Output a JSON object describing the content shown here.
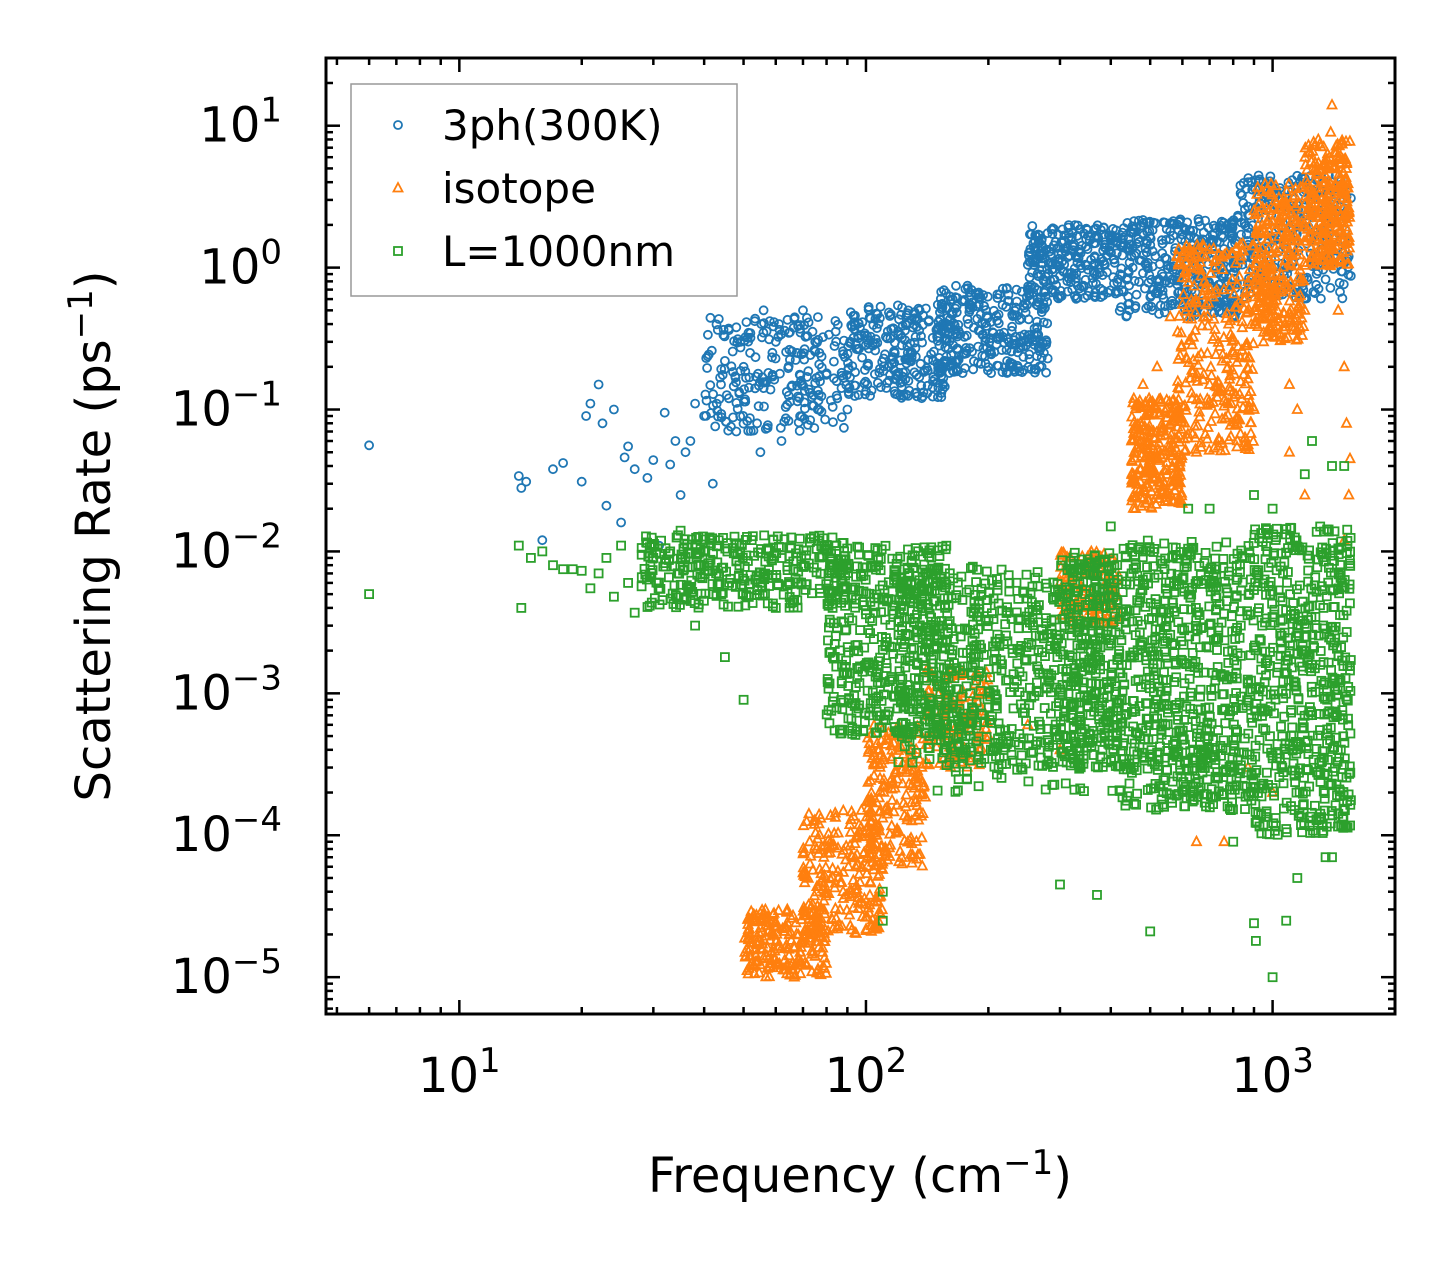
{
  "chart_data": {
    "type": "scatter",
    "xscale": "log",
    "yscale": "log",
    "xlim": [
      4.7,
      2000
    ],
    "ylim": [
      5.5e-06,
      30
    ],
    "xlabel": {
      "text": "Frequency (cm",
      "sup": "−1",
      "tail": ")"
    },
    "ylabel": {
      "text": "Scattering Rate (ps",
      "sup": "−1",
      "tail": ")"
    },
    "xticks": [
      {
        "value": 10,
        "base": "10",
        "exp": "1"
      },
      {
        "value": 100,
        "base": "10",
        "exp": "2"
      },
      {
        "value": 1000,
        "base": "10",
        "exp": "3"
      }
    ],
    "yticks": [
      {
        "value": 1e-05,
        "base": "10",
        "exp": "−5"
      },
      {
        "value": 0.0001,
        "base": "10",
        "exp": "−4"
      },
      {
        "value": 0.001,
        "base": "10",
        "exp": "−3"
      },
      {
        "value": 0.01,
        "base": "10",
        "exp": "−2"
      },
      {
        "value": 0.1,
        "base": "10",
        "exp": "−1"
      },
      {
        "value": 1,
        "base": "10",
        "exp": "0"
      },
      {
        "value": 10,
        "base": "10",
        "exp": "1"
      }
    ],
    "legend_position": "top-left",
    "series": [
      {
        "name": "3ph(300K)",
        "marker": "circle",
        "color": "#1f77b4",
        "points": [
          [
            6,
            0.056
          ],
          [
            14,
            0.034
          ],
          [
            14.2,
            0.028
          ],
          [
            14.6,
            0.031
          ],
          [
            16,
            0.012
          ],
          [
            17,
            0.038
          ],
          [
            18,
            0.042
          ],
          [
            20,
            0.031
          ],
          [
            20.5,
            0.09
          ],
          [
            21,
            0.11
          ],
          [
            22,
            0.15
          ],
          [
            22.5,
            0.08
          ],
          [
            23,
            0.021
          ],
          [
            24,
            0.1
          ],
          [
            25,
            0.016
          ],
          [
            25.5,
            0.046
          ],
          [
            26,
            0.055
          ],
          [
            27,
            0.038
          ],
          [
            29,
            0.033
          ],
          [
            30,
            0.044
          ],
          [
            31,
            0.011
          ],
          [
            32,
            0.095
          ],
          [
            33,
            0.041
          ],
          [
            34,
            0.06
          ],
          [
            35,
            0.025
          ],
          [
            36,
            0.05
          ],
          [
            37,
            0.06
          ],
          [
            38,
            0.11
          ],
          [
            40,
            0.09
          ],
          [
            42,
            0.03
          ],
          [
            44,
            0.15
          ],
          [
            45,
            0.22
          ],
          [
            46,
            0.12
          ],
          [
            48,
            0.07
          ],
          [
            50,
            0.2
          ],
          [
            52,
            0.32
          ],
          [
            54,
            0.08
          ],
          [
            55,
            0.05
          ],
          [
            56,
            0.5
          ],
          [
            58,
            0.42
          ],
          [
            60,
            0.3
          ],
          [
            62,
            0.06
          ],
          [
            65,
            0.35
          ],
          [
            68,
            0.25
          ],
          [
            70,
            0.5
          ],
          [
            75,
            0.3
          ],
          [
            80,
            0.18
          ],
          [
            85,
            0.12
          ],
          [
            90,
            0.1
          ]
        ],
        "bands": [
          {
            "x0": 40,
            "x1": 90,
            "ylo": 0.07,
            "yhi": 0.45,
            "n": 240
          },
          {
            "x0": 90,
            "x1": 160,
            "ylo": 0.12,
            "yhi": 0.55,
            "n": 260
          },
          {
            "x0": 150,
            "x1": 280,
            "ylo": 0.18,
            "yhi": 0.75,
            "n": 300
          },
          {
            "x0": 250,
            "x1": 420,
            "ylo": 0.6,
            "yhi": 2.0,
            "n": 260
          },
          {
            "x0": 420,
            "x1": 820,
            "ylo": 0.45,
            "yhi": 2.2,
            "n": 360
          },
          {
            "x0": 820,
            "x1": 1560,
            "ylo": 0.6,
            "yhi": 4.5,
            "n": 300
          }
        ]
      },
      {
        "name": "isotope",
        "marker": "triangle",
        "color": "#ff7f0e",
        "points": [
          [
            1400,
            14
          ],
          [
            1390,
            9
          ],
          [
            1380,
            6
          ],
          [
            1350,
            4
          ],
          [
            1300,
            2.5
          ],
          [
            1250,
            1.2
          ],
          [
            1200,
            0.5
          ],
          [
            1150,
            0.1
          ],
          [
            1100,
            0.05
          ],
          [
            1450,
            0.5
          ],
          [
            1500,
            0.2
          ],
          [
            1520,
            0.08
          ],
          [
            1550,
            0.045
          ],
          [
            1540,
            0.025
          ],
          [
            1500,
            0.012
          ],
          [
            1200,
            0.025
          ],
          [
            1100,
            0.15
          ],
          [
            1000,
            0.8
          ],
          [
            950,
            0.3
          ],
          [
            900,
            0.1
          ],
          [
            850,
            0.6
          ],
          [
            800,
            0.25
          ],
          [
            780,
            0.4
          ],
          [
            700,
            0.15
          ],
          [
            650,
            0.05
          ],
          [
            560,
            0.45
          ],
          [
            520,
            0.2
          ],
          [
            480,
            0.15
          ],
          [
            450,
            0.06
          ],
          [
            650,
            9e-05
          ],
          [
            760,
            9e-05
          ],
          [
            300,
            0.0004
          ],
          [
            250,
            0.0006
          ],
          [
            200,
            0.0005
          ],
          [
            870,
            0.0003
          ],
          [
            1000,
            0.0002
          ]
        ],
        "bands": [
          {
            "x0": 50,
            "x1": 80,
            "ylo": 1e-05,
            "yhi": 3e-05,
            "n": 220
          },
          {
            "x0": 70,
            "x1": 110,
            "ylo": 2e-05,
            "yhi": 0.00015,
            "n": 240
          },
          {
            "x0": 100,
            "x1": 140,
            "ylo": 6e-05,
            "yhi": 0.0006,
            "n": 200
          },
          {
            "x0": 140,
            "x1": 200,
            "ylo": 0.0003,
            "yhi": 0.0015,
            "n": 120
          },
          {
            "x0": 300,
            "x1": 420,
            "ylo": 0.003,
            "yhi": 0.01,
            "n": 120
          },
          {
            "x0": 450,
            "x1": 600,
            "ylo": 0.02,
            "yhi": 0.12,
            "n": 260
          },
          {
            "x0": 580,
            "x1": 900,
            "ylo": 0.05,
            "yhi": 1.5,
            "n": 300
          },
          {
            "x0": 900,
            "x1": 1200,
            "ylo": 0.3,
            "yhi": 4.0,
            "n": 280
          },
          {
            "x0": 1200,
            "x1": 1550,
            "ylo": 1.0,
            "yhi": 8.0,
            "n": 260
          }
        ]
      },
      {
        "name": "L=1000nm",
        "marker": "square",
        "color": "#2ca02c",
        "points": [
          [
            6,
            0.005
          ],
          [
            14,
            0.011
          ],
          [
            14.2,
            0.004
          ],
          [
            15,
            0.009
          ],
          [
            16,
            0.01
          ],
          [
            17,
            0.008
          ],
          [
            18,
            0.0075
          ],
          [
            19,
            0.0075
          ],
          [
            20,
            0.0073
          ],
          [
            21,
            0.0055
          ],
          [
            22,
            0.007
          ],
          [
            23,
            0.009
          ],
          [
            24,
            0.0048
          ],
          [
            25,
            0.011
          ],
          [
            26,
            0.006
          ],
          [
            27,
            0.0037
          ],
          [
            30,
            0.009
          ],
          [
            33,
            0.01
          ],
          [
            35,
            0.014
          ],
          [
            38,
            0.003
          ],
          [
            40,
            0.008
          ],
          [
            42,
            0.005
          ],
          [
            45,
            0.0018
          ],
          [
            50,
            0.0009
          ],
          [
            55,
            0.006
          ],
          [
            60,
            0.004
          ],
          [
            110,
            2.5e-05
          ],
          [
            110,
            4e-05
          ],
          [
            300,
            4.5e-05
          ],
          [
            370,
            3.8e-05
          ],
          [
            500,
            2.1e-05
          ],
          [
            900,
            2.4e-05
          ],
          [
            910,
            1.8e-05
          ],
          [
            1000,
            1e-05
          ],
          [
            1080,
            2.5e-05
          ],
          [
            1400,
            7e-05
          ],
          [
            1350,
            7e-05
          ],
          [
            1150,
            5e-05
          ],
          [
            800,
            9e-05
          ],
          [
            1500,
            0.04
          ],
          [
            1400,
            0.04
          ],
          [
            1250,
            0.06
          ],
          [
            1200,
            0.035
          ],
          [
            1000,
            0.02
          ],
          [
            900,
            0.025
          ],
          [
            700,
            0.02
          ],
          [
            620,
            0.02
          ],
          [
            450,
            0.007
          ],
          [
            400,
            0.015
          ]
        ],
        "bands": [
          {
            "x0": 28,
            "x1": 90,
            "ylo": 0.004,
            "yhi": 0.013,
            "n": 340
          },
          {
            "x0": 80,
            "x1": 160,
            "ylo": 0.0005,
            "yhi": 0.011,
            "n": 420
          },
          {
            "x0": 120,
            "x1": 300,
            "ylo": 0.0003,
            "yhi": 0.008,
            "n": 520
          },
          {
            "x0": 300,
            "x1": 420,
            "ylo": 0.0003,
            "yhi": 0.01,
            "n": 360
          },
          {
            "x0": 420,
            "x1": 900,
            "ylo": 0.00015,
            "yhi": 0.012,
            "n": 620
          },
          {
            "x0": 900,
            "x1": 1560,
            "ylo": 0.0001,
            "yhi": 0.015,
            "n": 560
          },
          {
            "x0": 150,
            "x1": 900,
            "ylo": 0.0002,
            "yhi": 0.0008,
            "n": 160
          }
        ]
      }
    ]
  }
}
